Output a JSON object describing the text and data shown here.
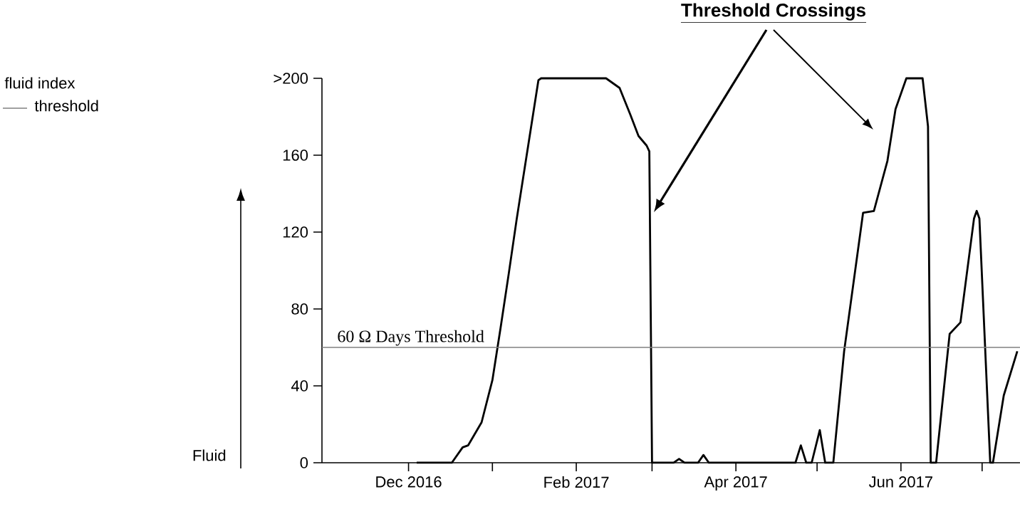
{
  "chart_data": {
    "type": "line",
    "x": [
      "2016-12-04",
      "2016-12-17",
      "2016-12-21",
      "2016-12-23",
      "2016-12-28",
      "2017-01-01",
      "2017-01-04",
      "2017-01-07",
      "2017-01-10",
      "2017-01-13",
      "2017-01-18",
      "2017-01-19",
      "2017-02-12",
      "2017-02-17",
      "2017-02-21",
      "2017-02-24",
      "2017-02-27",
      "2017-02-28",
      "2017-03-01",
      "2017-03-09",
      "2017-03-11",
      "2017-03-13",
      "2017-03-18",
      "2017-03-20",
      "2017-03-22",
      "2017-04-23",
      "2017-04-25",
      "2017-04-27",
      "2017-04-29",
      "2017-05-02",
      "2017-05-04",
      "2017-05-07",
      "2017-05-11",
      "2017-05-18",
      "2017-05-22",
      "2017-05-27",
      "2017-05-30",
      "2017-06-03",
      "2017-06-09",
      "2017-06-11",
      "2017-06-12",
      "2017-06-14",
      "2017-06-19",
      "2017-06-23",
      "2017-06-28",
      "2017-06-29",
      "2017-06-30",
      "2017-07-04",
      "2017-07-05",
      "2017-07-09",
      "2017-07-14"
    ],
    "series": [
      {
        "color": "#000000",
        "values": [
          0,
          0,
          8,
          9,
          21,
          43,
          70,
          98,
          127,
          154,
          199,
          200,
          200,
          195,
          181,
          170,
          165,
          162,
          0,
          0,
          2,
          0,
          0,
          4,
          0,
          0,
          9,
          0,
          0,
          17,
          0,
          0,
          58,
          130,
          131,
          157,
          184,
          200,
          200,
          175,
          0,
          0,
          67,
          73,
          127,
          131,
          127,
          0,
          0,
          35,
          58
        ]
      },
      {
        "name": "threshold",
        "color": "#808080",
        "x": [
          "2016-10-30",
          "2017-07-15"
        ],
        "values": [
          60,
          60
        ]
      }
    ],
    "legend_title": "fluid index",
    "legend": "top left",
    "ylabel": "Fluid",
    "xlim": [
      "2016-10-30",
      "2017-07-15"
    ],
    "ylim": [
      0,
      200
    ],
    "yticks": [
      0,
      40,
      80,
      120,
      160,
      {
        "value": 200,
        "label": ">200"
      }
    ],
    "xticks": [
      {
        "value": "2016-12-01",
        "label": "Dec 2016"
      },
      {
        "value": "2017-01-01",
        "label": null
      },
      {
        "value": "2017-02-01",
        "label": "Feb 2017"
      },
      {
        "value": "2017-03-01",
        "label": null
      },
      {
        "value": "2017-04-01",
        "label": "Apr 2017"
      },
      {
        "value": "2017-05-01",
        "label": null
      },
      {
        "value": "2017-06-01",
        "label": "Jun 2017"
      },
      {
        "value": "2017-07-01",
        "label": null
      }
    ],
    "annotations": [
      {
        "text": "60 Ω Days Threshold",
        "x": "2016-11-04",
        "y": 60
      },
      "**Threshold Crossings**"
    ],
    "grid": false
  }
}
